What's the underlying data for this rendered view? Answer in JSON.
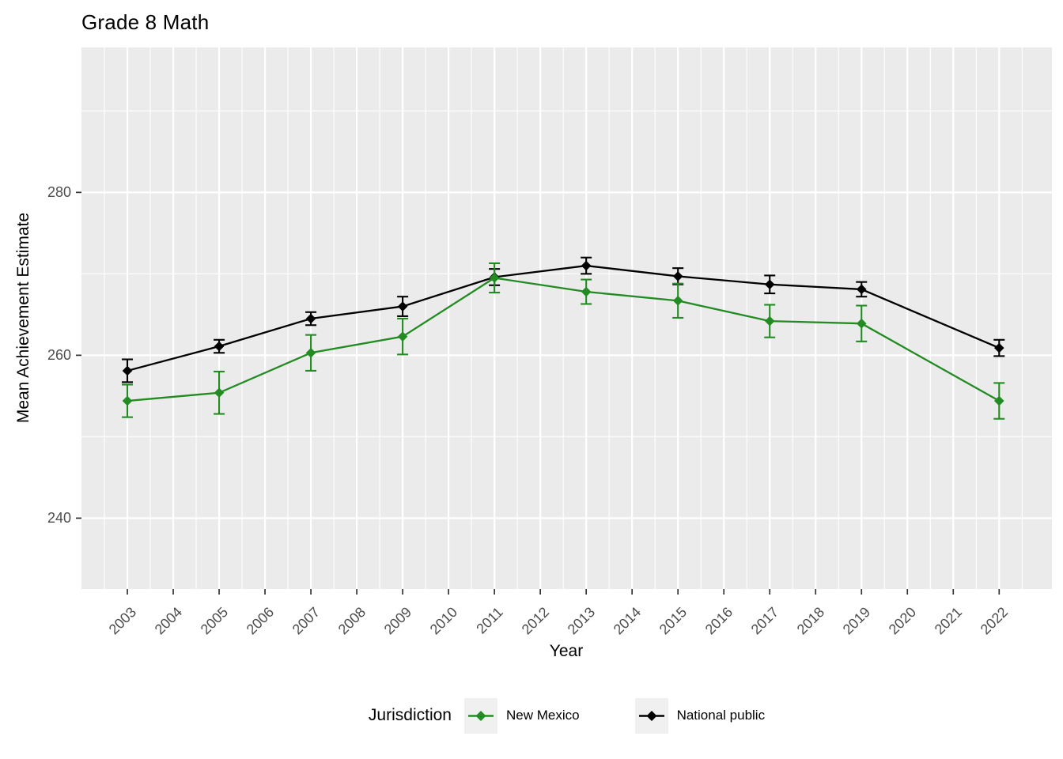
{
  "chart": {
    "title": "Grade 8 Math",
    "xlabel": "Year",
    "ylabel": "Mean Achievement Estimate",
    "legend_title": "Jurisdiction"
  },
  "chart_data": {
    "type": "line",
    "title": "Grade 8 Math",
    "xlabel": "Year",
    "ylabel": "Mean Achievement Estimate",
    "legend_title": "Jurisdiction",
    "legend_position": "bottom",
    "marker": "diamond",
    "error_bars": true,
    "x": [
      2003,
      2005,
      2007,
      2009,
      2011,
      2013,
      2015,
      2017,
      2019,
      2022
    ],
    "series": [
      {
        "name": "New Mexico",
        "color": "#228B22",
        "values": [
          254.4,
          255.4,
          260.3,
          262.3,
          269.5,
          267.8,
          266.7,
          264.2,
          263.9,
          254.4
        ],
        "errors": [
          2.0,
          2.6,
          2.2,
          2.2,
          1.8,
          1.5,
          2.1,
          2.0,
          2.2,
          2.2
        ]
      },
      {
        "name": "National public",
        "color": "#000000",
        "values": [
          258.1,
          261.1,
          264.5,
          266.0,
          269.6,
          271.0,
          269.7,
          268.7,
          268.1,
          260.9
        ],
        "errors": [
          1.4,
          0.8,
          0.8,
          1.2,
          1.0,
          1.0,
          1.0,
          1.1,
          0.9,
          1.0
        ]
      }
    ],
    "x_ticks": [
      2003,
      2004,
      2005,
      2006,
      2007,
      2008,
      2009,
      2010,
      2011,
      2012,
      2013,
      2014,
      2015,
      2016,
      2017,
      2018,
      2019,
      2020,
      2021,
      2022
    ],
    "y_ticks": [
      240,
      260,
      280
    ],
    "y_minor_ticks": [
      250,
      270,
      290
    ],
    "xlim": [
      2002,
      2023.15
    ],
    "ylim": [
      231.3,
      297.8
    ],
    "grid": true,
    "panel_bg": "#EBEBEB",
    "grid_color": "#FFFFFF",
    "tick_color": "#333333",
    "tick_label_color": "#4D4D4D",
    "legend_key_bg": "#F0F0F0"
  }
}
